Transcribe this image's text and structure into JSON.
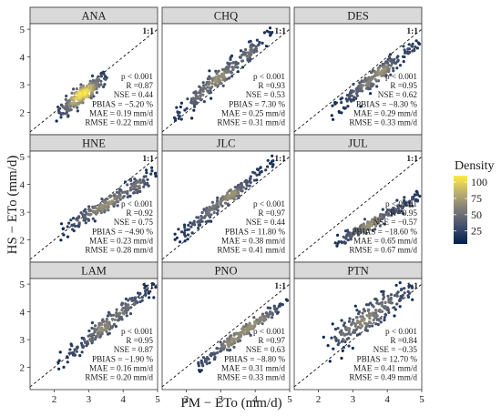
{
  "chart_data": {
    "type": "scatter",
    "xlabel": "PM − ETo (mm/d)",
    "ylabel": "HS − ETo (mm/d)",
    "xlim": [
      1.3,
      5.0
    ],
    "ylim": [
      1.2,
      5.2
    ],
    "xticks": [
      2,
      3,
      4,
      5
    ],
    "yticks": [
      2,
      3,
      4,
      5
    ],
    "tick_labels": {
      "x": [
        "2",
        "3",
        "4",
        "5"
      ],
      "y": [
        "2",
        "3",
        "4",
        "5"
      ]
    },
    "reference_line": {
      "label": "1:1",
      "slope": 1,
      "intercept": 0,
      "style": "dashed"
    },
    "grid": false,
    "legend": {
      "title": "Density",
      "ticks": [
        100,
        75,
        50,
        25
      ],
      "range": [
        5,
        110
      ],
      "colors": [
        "#00204d",
        "#414d6b",
        "#7c7b78",
        "#bcaf6f",
        "#ffea46"
      ],
      "placement": "right"
    },
    "panels": [
      {
        "site": "ANA",
        "stats": [
          "p < 0.001",
          "R =0.87",
          "NSE = 0.44",
          "PBIAS = −5.20 %",
          "MAE = 0.19 mm/d",
          "RMSE = 0.22 mm/d"
        ],
        "cloud": {
          "x_range": [
            2.2,
            3.4
          ],
          "slope": 0.92,
          "intercept": 0.05,
          "scatter": 0.22
        }
      },
      {
        "site": "CHQ",
        "stats": [
          "p < 0.001",
          "R =0.93",
          "NSE = 0.53",
          "PBIAS = 7.30 %",
          "MAE = 0.25 mm/d",
          "RMSE = 0.31 mm/d"
        ],
        "cloud": {
          "x_range": [
            1.7,
            4.4
          ],
          "slope": 1.05,
          "intercept": 0.12,
          "scatter": 0.22
        }
      },
      {
        "site": "DES",
        "stats": [
          "p < 0.001",
          "R =0.95",
          "NSE = 0.62",
          "PBIAS = −8.30 %",
          "MAE = 0.29 mm/d",
          "RMSE = 0.33 mm/d"
        ],
        "cloud": {
          "x_range": [
            2.5,
            4.8
          ],
          "slope": 0.98,
          "intercept": -0.3,
          "scatter": 0.2
        }
      },
      {
        "site": "HNE",
        "stats": [
          "p < 0.001",
          "R =0.92",
          "NSE = 0.75",
          "PBIAS = −4.90 %",
          "MAE = 0.23 mm/d",
          "RMSE = 0.28 mm/d"
        ],
        "cloud": {
          "x_range": [
            2.3,
            4.8
          ],
          "slope": 0.78,
          "intercept": 0.55,
          "scatter": 0.2
        }
      },
      {
        "site": "JLC",
        "stats": [
          "p < 0.001",
          "R =0.97",
          "NSE = 0.44",
          "PBIAS = 11.80 %",
          "MAE = 0.38 mm/d",
          "RMSE = 0.41 mm/d"
        ],
        "cloud": {
          "x_range": [
            1.8,
            4.4
          ],
          "slope": 0.98,
          "intercept": 0.38,
          "scatter": 0.15
        }
      },
      {
        "site": "JUL",
        "stats": [
          "p < 0.001",
          "R =0.95",
          "NSE = −0.57",
          "PBIAS = −18.60 %",
          "MAE = 0.65 mm/d",
          "RMSE = 0.67 mm/d"
        ],
        "cloud": {
          "x_range": [
            2.5,
            4.8
          ],
          "slope": 0.7,
          "intercept": 0.1,
          "scatter": 0.14
        }
      },
      {
        "site": "LAM",
        "stats": [
          "p < 0.001",
          "R =0.95",
          "NSE = 0.87",
          "PBIAS = −1.90 %",
          "MAE = 0.16 mm/d",
          "RMSE = 0.20 mm/d"
        ],
        "cloud": {
          "x_range": [
            2.2,
            4.8
          ],
          "slope": 0.98,
          "intercept": 0.1,
          "scatter": 0.22
        }
      },
      {
        "site": "PNO",
        "stats": [
          "p < 0.001",
          "R =0.97",
          "NSE = 0.63",
          "PBIAS = −8.80 %",
          "MAE = 0.31 mm/d",
          "RMSE = 0.33 mm/d"
        ],
        "cloud": {
          "x_range": [
            2.5,
            4.8
          ],
          "slope": 0.92,
          "intercept": -0.1,
          "scatter": 0.15
        }
      },
      {
        "site": "PTN",
        "stats": [
          "p < 0.001",
          "R =0.84",
          "NSE = −0.35",
          "PBIAS = 12.70 %",
          "MAE = 0.41 mm/d",
          "RMSE = 0.49 mm/d"
        ],
        "cloud": {
          "x_range": [
            2.3,
            4.6
          ],
          "slope": 0.85,
          "intercept": 0.9,
          "scatter": 0.35
        }
      }
    ]
  }
}
